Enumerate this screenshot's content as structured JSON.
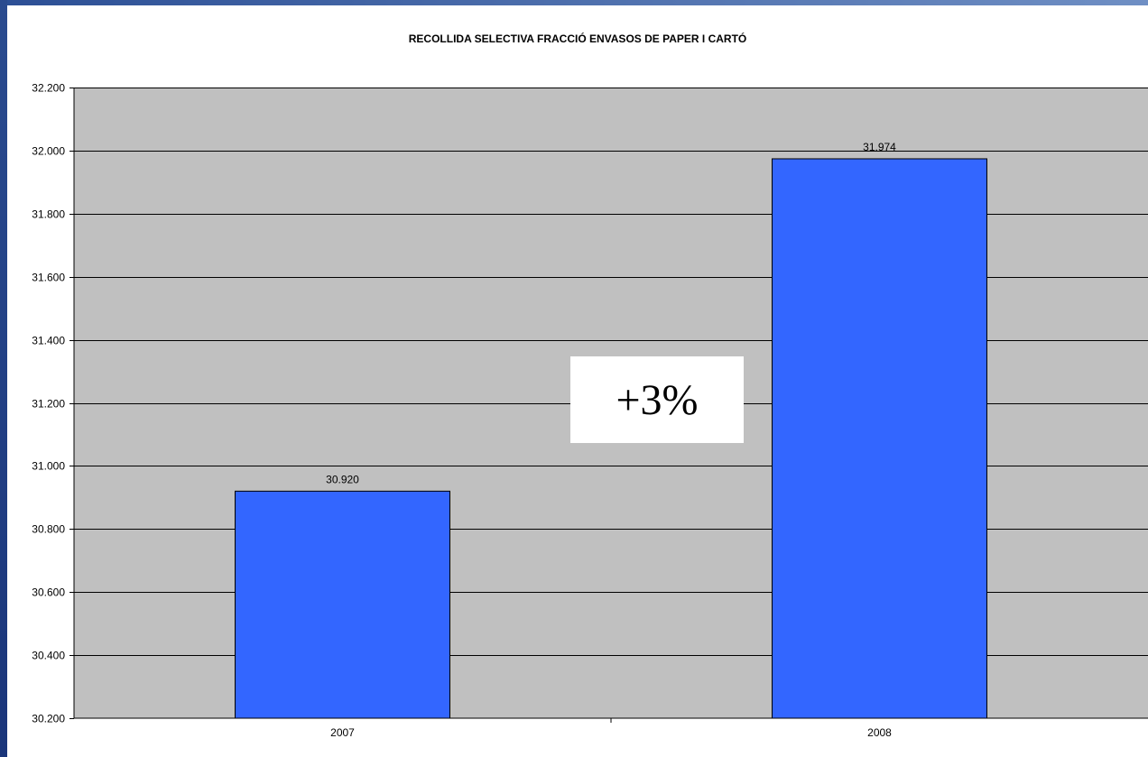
{
  "chart_data": {
    "type": "bar",
    "title": "RECOLLIDA SELECTIVA FRACCIÓ ENVASOS DE PAPER I CARTÓ",
    "categories": [
      "2007",
      "2008"
    ],
    "values": [
      30920,
      31974
    ],
    "value_labels": [
      "30.920",
      "31.974"
    ],
    "ylim": [
      30200,
      32200
    ],
    "yticks": [
      30200,
      30400,
      30600,
      30800,
      31000,
      31200,
      31400,
      31600,
      31800,
      32000,
      32200
    ],
    "ytick_labels": [
      "30.200",
      "30.400",
      "30.600",
      "30.800",
      "31.000",
      "31.200",
      "31.400",
      "31.600",
      "31.800",
      "32.000",
      "32.200"
    ],
    "grid": true,
    "annotation": "+3%",
    "colors": {
      "bar": "#3366ff",
      "plot_background": "#c0c0c0",
      "frame": "#1c3a7a"
    }
  }
}
